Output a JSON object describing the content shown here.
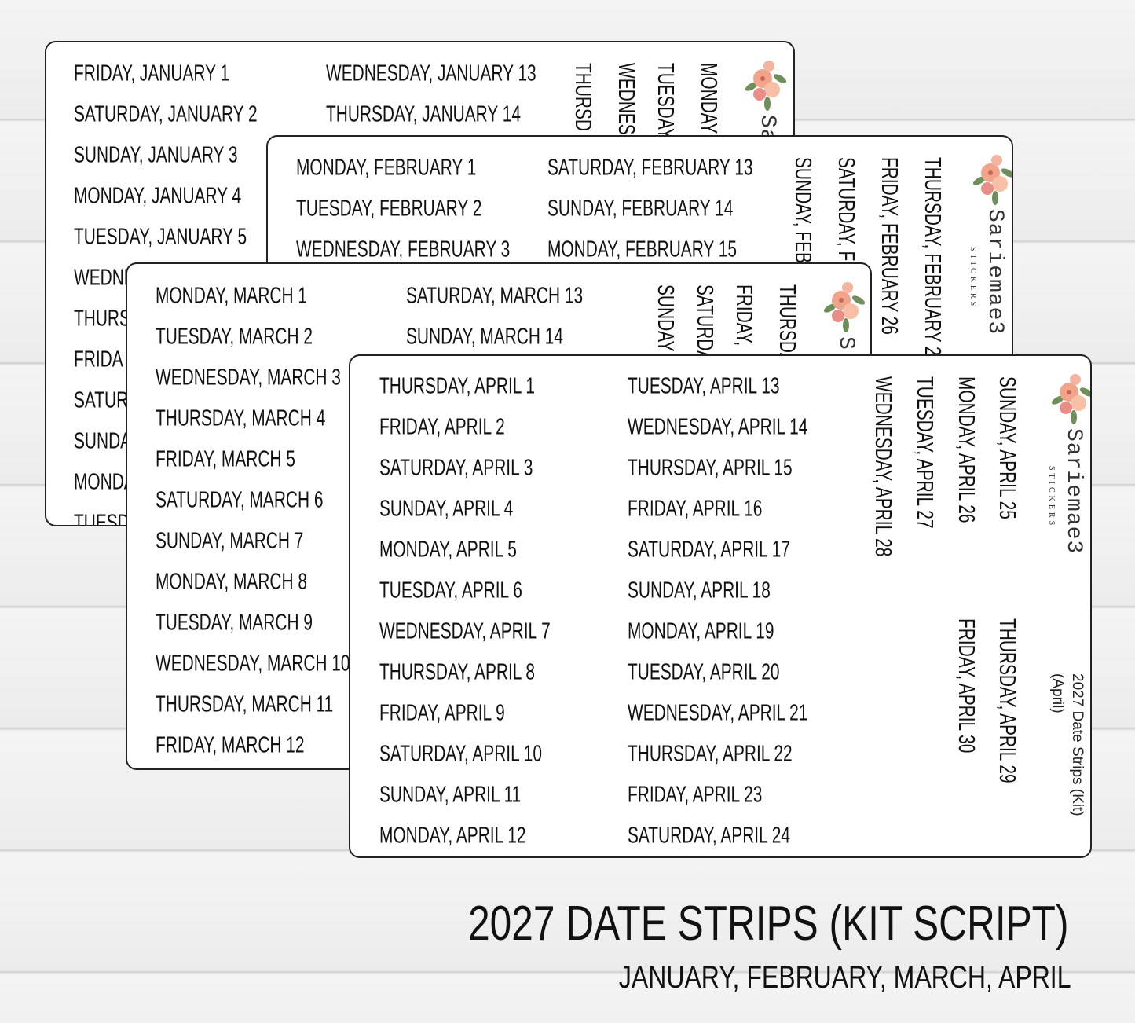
{
  "sheets": [
    {
      "columns": [
        [
          "FRIDAY, JANUARY 1",
          "SATURDAY, JANUARY 2",
          "SUNDAY, JANUARY 3",
          "MONDAY, JANUARY 4",
          "TUESDAY, JANUARY 5",
          "WEDNE",
          "THURS",
          "FRIDA",
          "SATUR",
          "SUNDA",
          "MONDA",
          "TUESD"
        ],
        [
          "WEDNESDAY, JANUARY 13",
          "THURSDAY, JANUARY 14"
        ]
      ],
      "vertical": [
        "MONDAY",
        "TUESDAY",
        "WEDNES",
        "THURSD"
      ],
      "brand": {
        "name": "Sar"
      }
    },
    {
      "columns": [
        [
          "MONDAY, FEBRUARY 1",
          "TUESDAY, FEBRUARY 2",
          "WEDNESDAY, FEBRUARY 3"
        ],
        [
          "SATURDAY, FEBRUARY 13",
          "SUNDAY, FEBRUARY 14",
          "MONDAY, FEBRUARY 15"
        ]
      ],
      "vertical": [
        "THURSDAY, FEBRUARY 2",
        "FRIDAY, FEBRUARY 26",
        "SATURDAY, F",
        "SUNDAY, FEB"
      ],
      "brand": {
        "name": "Sariemae3",
        "tagline": "STICKERS"
      }
    },
    {
      "columns": [
        [
          "MONDAY, MARCH 1",
          "TUESDAY, MARCH 2",
          "WEDNESDAY, MARCH 3",
          "THURSDAY, MARCH 4",
          "FRIDAY, MARCH 5",
          "SATURDAY, MARCH 6",
          "SUNDAY, MARCH 7",
          "MONDAY, MARCH 8",
          "TUESDAY, MARCH 9",
          "WEDNESDAY, MARCH 10",
          "THURSDAY, MARCH 11",
          "FRIDAY, MARCH 12"
        ],
        [
          "SATURDAY, MARCH 13",
          "SUNDAY, MARCH 14"
        ]
      ],
      "vertical": [
        "THURSDAY",
        "FRIDAY,",
        "SATURDA",
        "SUNDAY"
      ],
      "brand": {
        "name": "S"
      }
    },
    {
      "columns": [
        [
          "THURSDAY, APRIL 1",
          "FRIDAY, APRIL 2",
          "SATURDAY, APRIL 3",
          "SUNDAY, APRIL 4",
          "MONDAY, APRIL 5",
          "TUESDAY, APRIL 6",
          "WEDNESDAY, APRIL 7",
          "THURSDAY, APRIL 8",
          "FRIDAY, APRIL 9",
          "SATURDAY, APRIL 10",
          "SUNDAY, APRIL 11",
          "MONDAY, APRIL 12"
        ],
        [
          "TUESDAY, APRIL 13",
          "WEDNESDAY, APRIL 14",
          "THURSDAY, APRIL 15",
          "FRIDAY, APRIL 16",
          "SATURDAY, APRIL 17",
          "SUNDAY, APRIL 18",
          "MONDAY, APRIL 19",
          "TUESDAY, APRIL 20",
          "WEDNESDAY, APRIL 21",
          "THURSDAY, APRIL 22",
          "FRIDAY, APRIL 23",
          "SATURDAY, APRIL 24"
        ]
      ],
      "vertical": [
        "SUNDAY, APRIL 25",
        "MONDAY, APRIL 26",
        "TUESDAY, APRIL 27",
        "WEDNESDAY, APRIL 28",
        "THURSDAY, APRIL 29",
        "FRIDAY, APRIL 30"
      ],
      "brand": {
        "name": "Sariemae3",
        "tagline": "STICKERS"
      },
      "footer": [
        "2027 Date Strips (Kit)",
        "(April)"
      ]
    }
  ],
  "title": "2027 DATE STRIPS (KIT SCRIPT)",
  "subtitle": "JANUARY, FEBRUARY, MARCH, APRIL"
}
